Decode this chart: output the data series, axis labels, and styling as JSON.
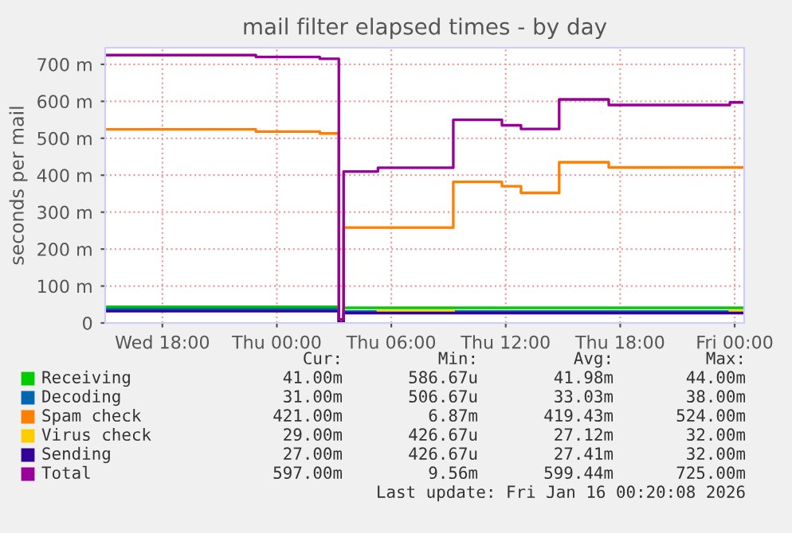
{
  "chart_data": {
    "type": "step",
    "title": "mail filter elapsed times - by day",
    "ylabel": "seconds per mail",
    "xlim": [
      "2026-01-14T15:00",
      "2026-01-16T00:30"
    ],
    "xticks": [
      {
        "value": "2026-01-14T18:00",
        "label": "Wed 18:00"
      },
      {
        "value": "2026-01-15T00:00",
        "label": "Thu 00:00"
      },
      {
        "value": "2026-01-15T06:00",
        "label": "Thu 06:00"
      },
      {
        "value": "2026-01-15T12:00",
        "label": "Thu 12:00"
      },
      {
        "value": "2026-01-15T18:00",
        "label": "Thu 18:00"
      },
      {
        "value": "2026-01-16T00:00",
        "label": "Fri 00:00"
      }
    ],
    "ylim": [
      0,
      745
    ],
    "yticks": [
      {
        "value": 0,
        "label": "0"
      },
      {
        "value": 100,
        "label": "100 m"
      },
      {
        "value": 200,
        "label": "200 m"
      },
      {
        "value": 300,
        "label": "300 m"
      },
      {
        "value": 400,
        "label": "400 m"
      },
      {
        "value": 500,
        "label": "500 m"
      },
      {
        "value": 600,
        "label": "600 m"
      },
      {
        "value": 700,
        "label": "700 m"
      }
    ],
    "grid": true,
    "legend": "bottom",
    "series": [
      {
        "name": "Receiving",
        "color": "#00cc00",
        "x": [
          "2026-01-14T15:00",
          "2026-01-15T03:15",
          "2026-01-15T03:30",
          "2026-01-16T00:24"
        ],
        "values": [
          44,
          1,
          41,
          41
        ]
      },
      {
        "name": "Decoding",
        "color": "#0066b3",
        "x": [
          "2026-01-14T15:00",
          "2026-01-15T03:15",
          "2026-01-15T03:30",
          "2026-01-16T00:24"
        ],
        "values": [
          38,
          1,
          31,
          31
        ]
      },
      {
        "name": "Spam check",
        "color": "#ff8000",
        "x": [
          "2026-01-14T15:00",
          "2026-01-14T22:54",
          "2026-01-15T02:15",
          "2026-01-15T03:15",
          "2026-01-15T03:30",
          "2026-01-15T09:15",
          "2026-01-15T11:48",
          "2026-01-15T12:48",
          "2026-01-15T14:48",
          "2026-01-15T17:24",
          "2026-01-16T00:24"
        ],
        "values": [
          524,
          518,
          513,
          7,
          258,
          382,
          370,
          352,
          435,
          421,
          421
        ]
      },
      {
        "name": "Virus check",
        "color": "#ffcc00",
        "x": [
          "2026-01-15T05:18",
          "2026-01-15T09:15",
          "2026-01-15T09:16",
          "2026-01-15T23:45",
          "2026-01-16T00:24"
        ],
        "values": [
          32,
          32,
          null,
          32,
          32
        ]
      },
      {
        "name": "Sending",
        "color": "#330099",
        "x": [
          "2026-01-14T15:00",
          "2026-01-15T03:15",
          "2026-01-15T03:30",
          "2026-01-16T00:24"
        ],
        "values": [
          32,
          1,
          27,
          27
        ]
      },
      {
        "name": "Total",
        "color": "#990099",
        "x": [
          "2026-01-14T15:00",
          "2026-01-14T22:54",
          "2026-01-15T02:15",
          "2026-01-15T03:15",
          "2026-01-15T03:30",
          "2026-01-15T05:18",
          "2026-01-15T09:15",
          "2026-01-15T11:48",
          "2026-01-15T12:48",
          "2026-01-15T14:48",
          "2026-01-15T17:24",
          "2026-01-15T23:45",
          "2026-01-16T00:24"
        ],
        "values": [
          725,
          720,
          715,
          10,
          410,
          420,
          550,
          535,
          525,
          605,
          590,
          597,
          597
        ]
      }
    ],
    "annotations": [
      "Cur:",
      "Min:",
      "Avg:",
      "Max:",
      "41.00m",
      "586.67u",
      "41.98m",
      "44.00m",
      "31.00m",
      "506.67u",
      "33.03m",
      "38.00m",
      "421.00m",
      "6.87m",
      "419.43m",
      "524.00m",
      "29.00m",
      "426.67u",
      "27.12m",
      "32.00m",
      "27.00m",
      "426.67u",
      "27.41m",
      "32.00m",
      "597.00m",
      "9.56m",
      "599.44m",
      "725.00m",
      "Last update: Fri Jan 16 00:20:08 2026"
    ]
  }
}
